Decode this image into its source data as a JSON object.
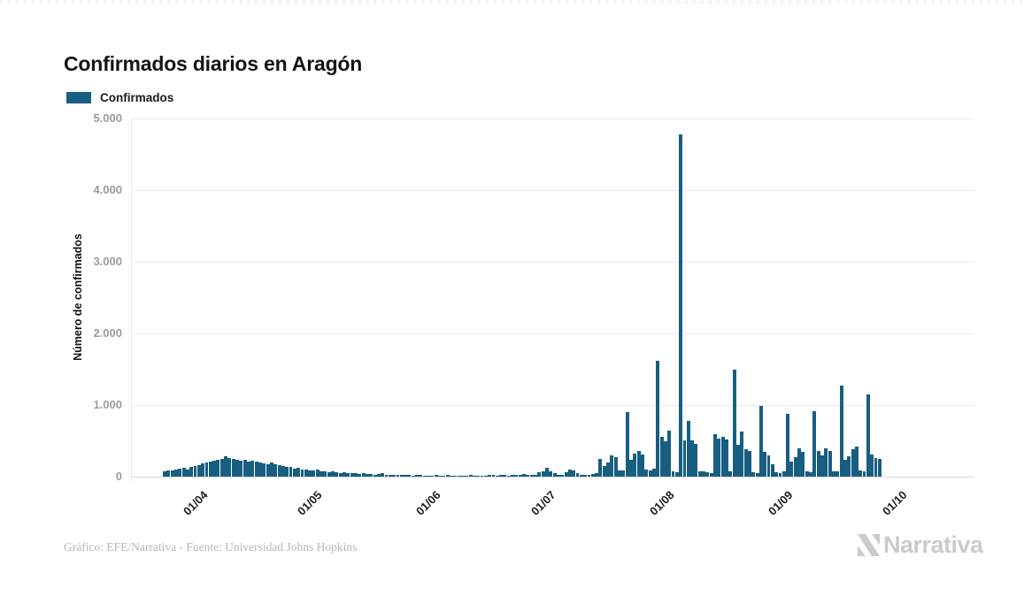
{
  "page": {
    "title": "Confirmados diarios en Aragón",
    "footer_credit": "Gráfico: EFE/Narrativa - Fuente: Universidad Johns Hopkins",
    "brand": "Narrativa"
  },
  "legend": {
    "label": "Confirmados",
    "color": "#175e81"
  },
  "colors": {
    "background": "#ffffff",
    "bar": "#175e81",
    "grid": "#ebebeb",
    "axis_line": "#d8d8d8",
    "y_tick_label": "#9b9b9b",
    "x_tick_label": "#1c1c1c",
    "title": "#141414",
    "footer": "#b6b6b6",
    "logo": "#cbcbcb"
  },
  "chart_data": {
    "type": "bar",
    "title": "Confirmados diarios en Aragón",
    "series_name": "Confirmados",
    "xlabel": "",
    "ylabel": "Número de confirmados",
    "ylim": [
      0,
      5000
    ],
    "grid": "horizontal",
    "legend_position": "top-left",
    "y_ticks": [
      {
        "label": "0",
        "value": 0
      },
      {
        "label": "1.000",
        "value": 1000
      },
      {
        "label": "2.000",
        "value": 2000
      },
      {
        "label": "3.000",
        "value": 3000
      },
      {
        "label": "4.000",
        "value": 4000
      },
      {
        "label": "5.000",
        "value": 5000
      }
    ],
    "x_ticks": [
      {
        "label": "01/04",
        "day_index": 9
      },
      {
        "label": "01/05",
        "day_index": 39
      },
      {
        "label": "01/06",
        "day_index": 70
      },
      {
        "label": "01/07",
        "day_index": 100
      },
      {
        "label": "01/08",
        "day_index": 131
      },
      {
        "label": "01/09",
        "day_index": 162
      },
      {
        "label": "01/10",
        "day_index": 192
      }
    ],
    "values": [
      75,
      90,
      85,
      100,
      110,
      120,
      105,
      130,
      150,
      165,
      180,
      195,
      210,
      220,
      235,
      250,
      290,
      265,
      245,
      230,
      220,
      235,
      210,
      225,
      215,
      200,
      185,
      170,
      195,
      175,
      160,
      150,
      140,
      130,
      115,
      120,
      105,
      95,
      90,
      85,
      95,
      80,
      70,
      65,
      75,
      60,
      55,
      65,
      50,
      45,
      55,
      40,
      45,
      35,
      40,
      30,
      35,
      45,
      30,
      25,
      30,
      20,
      25,
      30,
      20,
      15,
      25,
      20,
      15,
      10,
      15,
      20,
      10,
      15,
      20,
      10,
      5,
      15,
      10,
      15,
      20,
      15,
      10,
      5,
      15,
      20,
      25,
      15,
      20,
      25,
      15,
      30,
      25,
      20,
      35,
      30,
      25,
      20,
      60,
      80,
      120,
      75,
      45,
      30,
      25,
      60,
      100,
      85,
      45,
      30,
      25,
      20,
      35,
      50,
      250,
      150,
      195,
      300,
      275,
      90,
      85,
      905,
      240,
      320,
      360,
      310,
      95,
      85,
      110,
      1620,
      560,
      490,
      645,
      70,
      60,
      4776,
      505,
      775,
      505,
      455,
      80,
      70,
      60,
      55,
      590,
      530,
      560,
      520,
      75,
      1494,
      440,
      625,
      380,
      360,
      65,
      55,
      990,
      340,
      295,
      175,
      60,
      50,
      70,
      875,
      215,
      275,
      390,
      340,
      75,
      65,
      916,
      360,
      300,
      400,
      363,
      80,
      70,
      1270,
      240,
      280,
      384,
      425,
      85,
      75,
      1147,
      310,
      260,
      252
    ]
  }
}
